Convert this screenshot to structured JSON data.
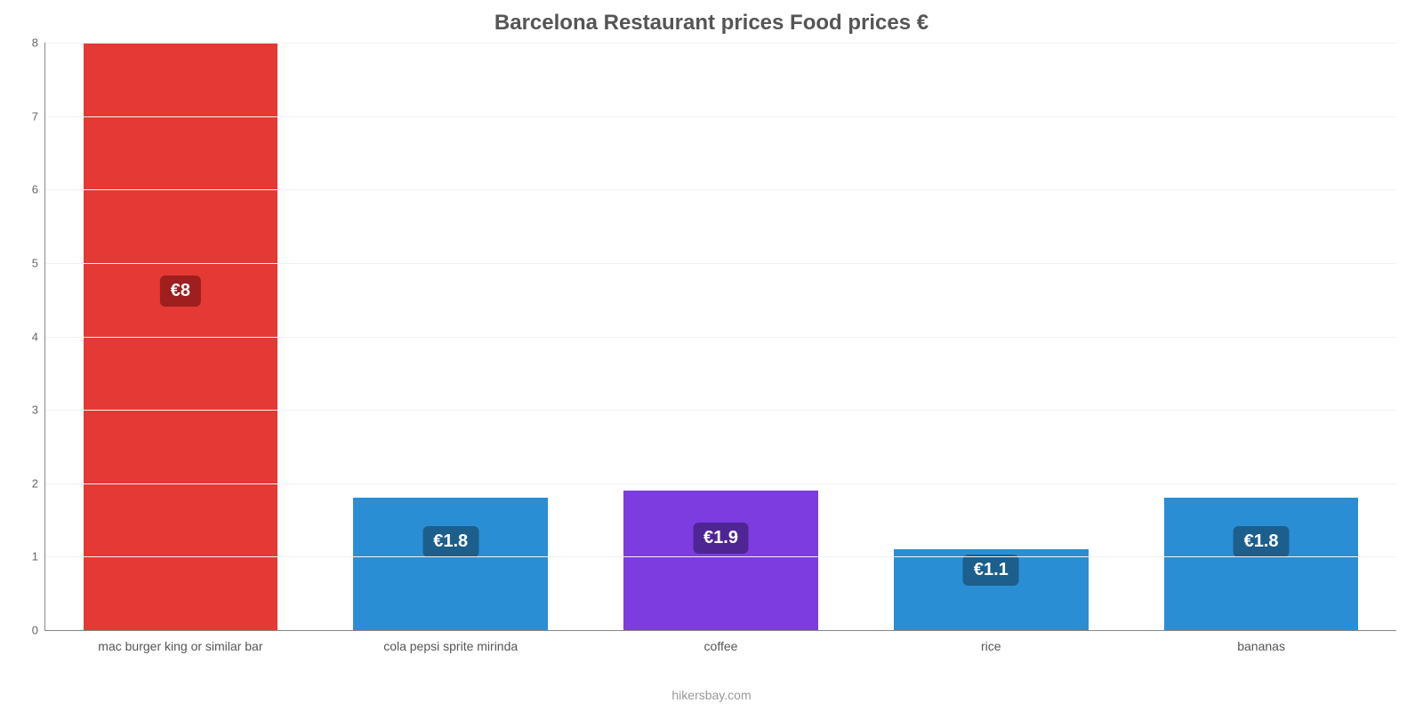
{
  "chart": {
    "type": "bar",
    "title": "Barcelona Restaurant prices Food prices €",
    "title_fontsize": 24,
    "title_color": "#555555",
    "caption": "hikersbay.com",
    "caption_color": "#999999",
    "background_color": "#ffffff",
    "grid_color": "#f2f2f2",
    "axis_color": "#888888",
    "ylim": [
      0,
      8
    ],
    "ytick_step": 1,
    "yticks": [
      0,
      1,
      2,
      3,
      4,
      5,
      6,
      7,
      8
    ],
    "bar_width": 0.72,
    "label_fontsize": 14,
    "value_label_fontsize": 20,
    "currency_prefix": "€",
    "categories": [
      "mac burger king or similar bar",
      "cola pepsi sprite mirinda",
      "coffee",
      "rice",
      "bananas"
    ],
    "values": [
      8,
      1.8,
      1.9,
      1.1,
      1.8
    ],
    "display_labels": [
      "€8",
      "€1.8",
      "€1.9",
      "€1.1",
      "€1.8"
    ],
    "bar_colors": [
      "#e53935",
      "#2a8ed4",
      "#7c3ce0",
      "#2a8ed4",
      "#2a8ed4"
    ],
    "value_bg_colors": [
      "#9f1e1e",
      "#1c5e8c",
      "#4f2593",
      "#1c5e8c",
      "#1c5e8c"
    ],
    "value_label_ratio": 0.55
  }
}
